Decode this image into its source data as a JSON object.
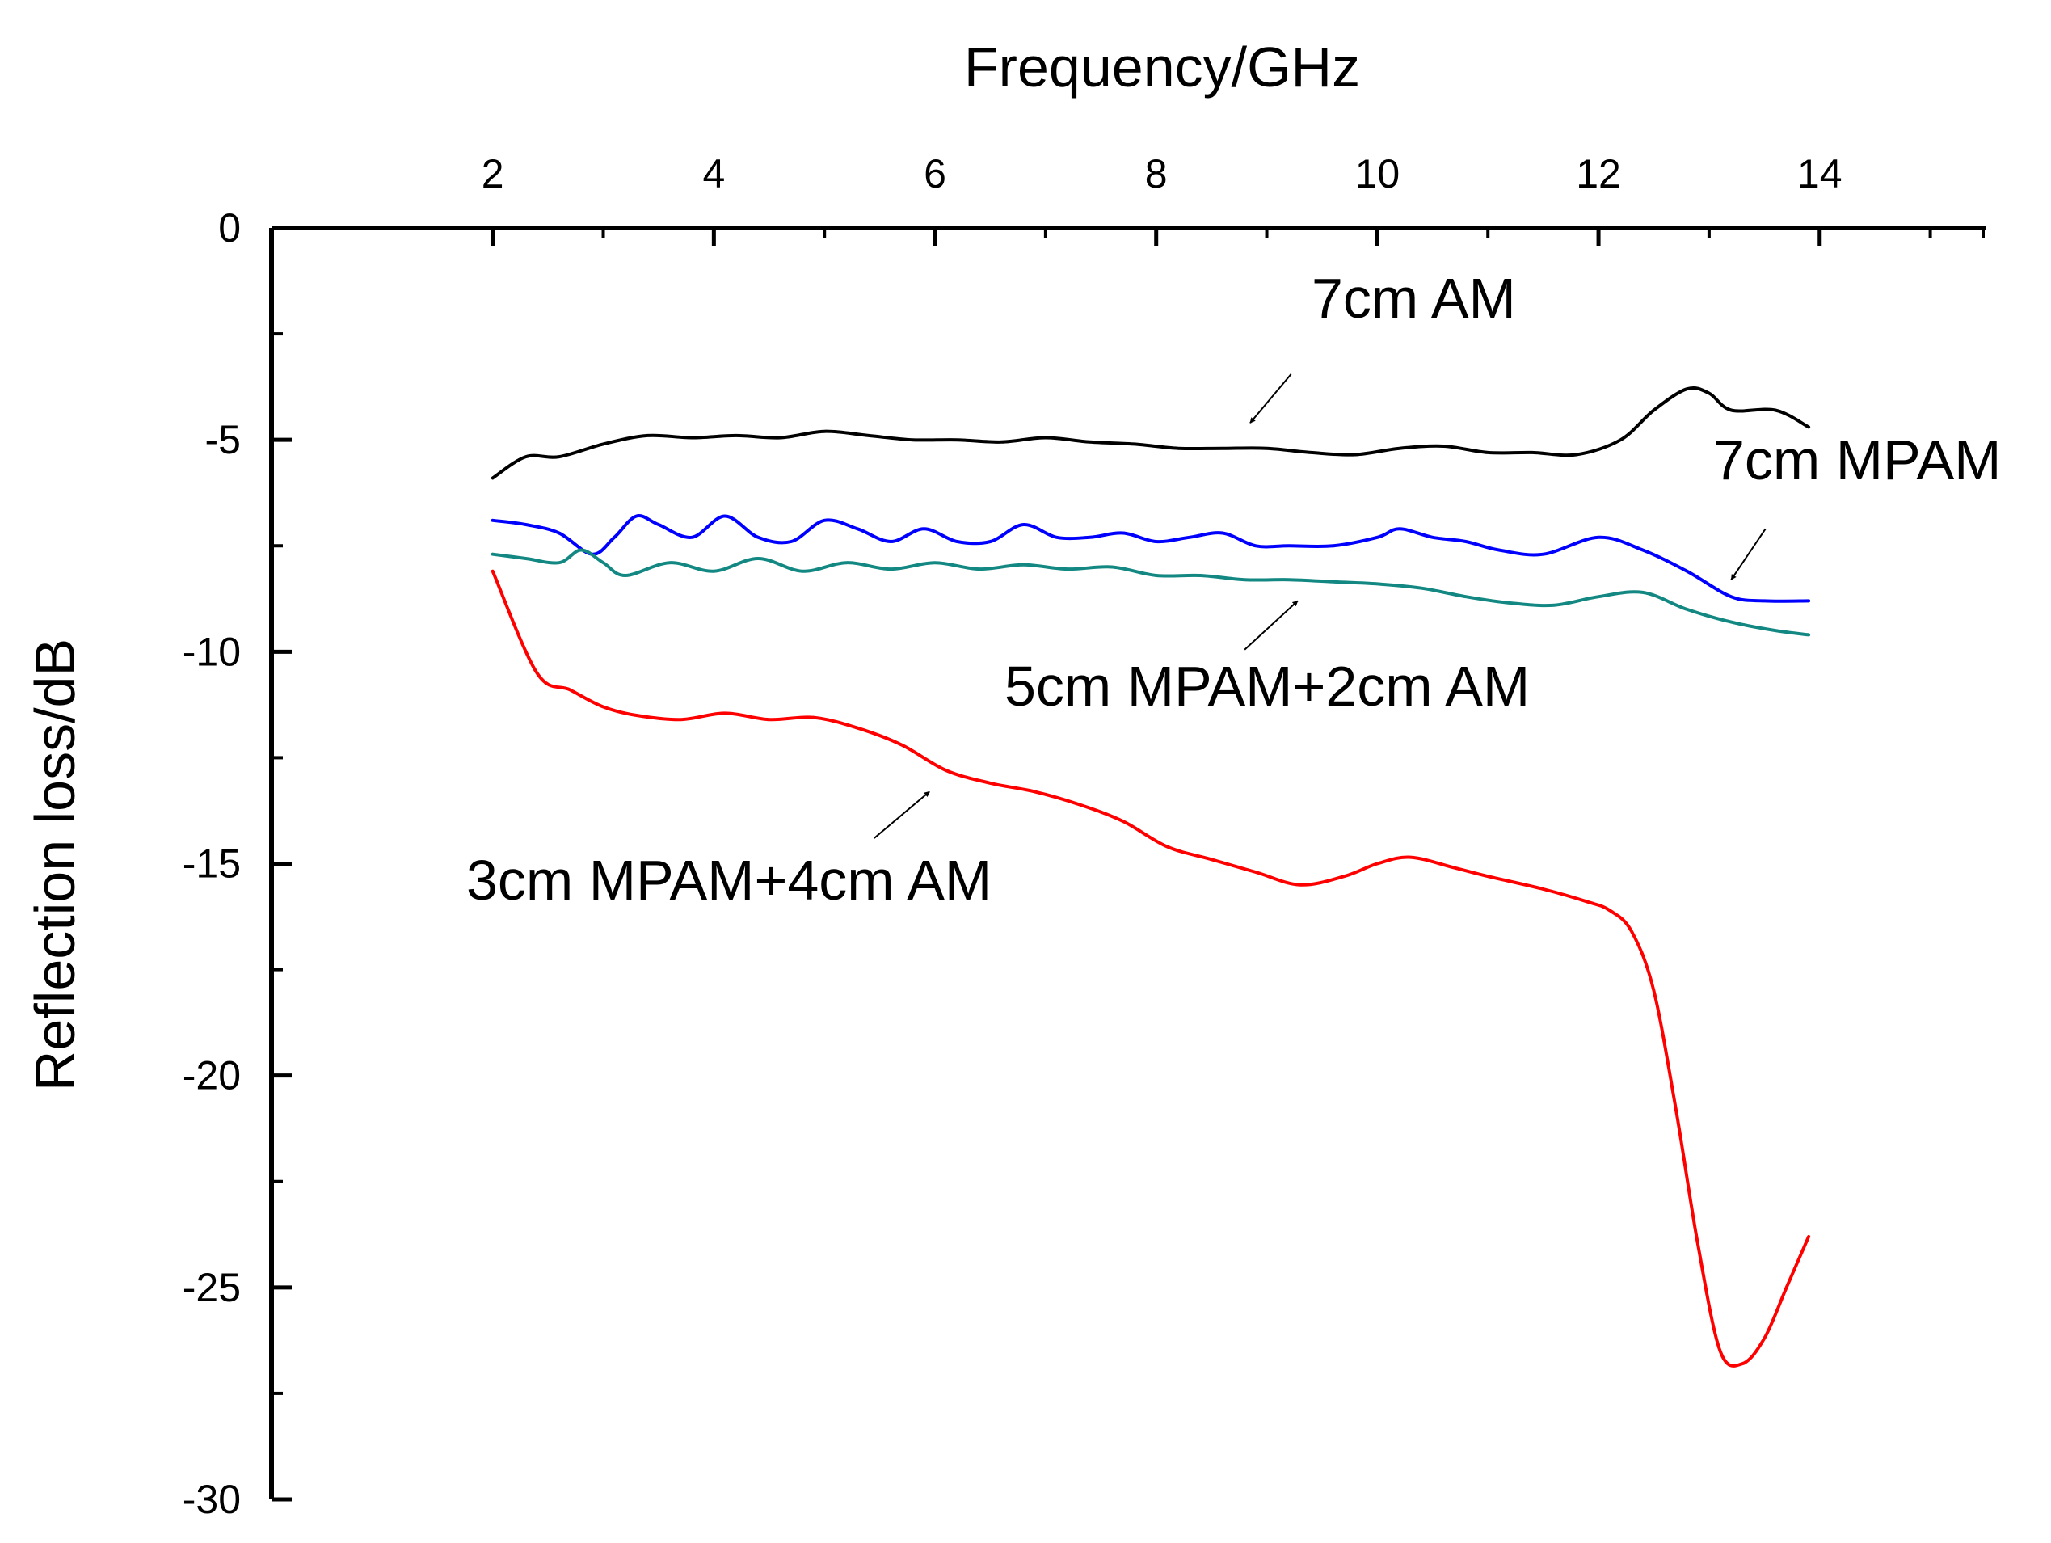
{
  "chart_data": {
    "type": "line",
    "title": "",
    "xlabel": "Frequency/GHz",
    "ylabel": "Reflection loss/dB",
    "xlim": [
      0,
      15.5
    ],
    "ylim": [
      -30,
      0
    ],
    "x_ticks": [
      2,
      4,
      6,
      8,
      10,
      12,
      14
    ],
    "x_tick_labels": [
      "2",
      "4",
      "6",
      "8",
      "10",
      "12",
      "14"
    ],
    "y_ticks": [
      0,
      -5,
      -10,
      -15,
      -20,
      -25,
      -30
    ],
    "y_tick_labels": [
      "0",
      "-5",
      "-10",
      "-15",
      "-20",
      "-25",
      "-30"
    ],
    "x_axis_position": "top",
    "grid": false,
    "legend": "none",
    "series": [
      {
        "name": "7cm AM",
        "color": "#000000",
        "x": [
          2,
          2.3,
          2.6,
          3.0,
          3.4,
          3.8,
          4.2,
          4.6,
          5.0,
          5.4,
          5.8,
          6.2,
          6.6,
          7.0,
          7.4,
          7.8,
          8.2,
          8.6,
          9.0,
          9.4,
          9.8,
          10.2,
          10.6,
          11.0,
          11.4,
          11.8,
          12.2,
          12.5,
          12.8,
          13.0,
          13.2,
          13.6,
          13.9
        ],
        "y": [
          -5.9,
          -5.4,
          -5.4,
          -5.1,
          -4.9,
          -4.95,
          -4.9,
          -4.95,
          -4.8,
          -4.9,
          -5.0,
          -5.0,
          -5.05,
          -4.95,
          -5.05,
          -5.1,
          -5.2,
          -5.2,
          -5.2,
          -5.3,
          -5.35,
          -5.2,
          -5.15,
          -5.3,
          -5.3,
          -5.35,
          -5.0,
          -4.3,
          -3.8,
          -3.9,
          -4.3,
          -4.3,
          -4.7
        ]
      },
      {
        "name": "7cm MPAM",
        "color": "#0000ff",
        "x": [
          2,
          2.3,
          2.6,
          2.9,
          3.1,
          3.3,
          3.5,
          3.8,
          4.1,
          4.4,
          4.7,
          5.0,
          5.3,
          5.6,
          5.9,
          6.2,
          6.5,
          6.8,
          7.1,
          7.4,
          7.7,
          8.0,
          8.3,
          8.6,
          8.9,
          9.2,
          9.6,
          10.0,
          10.2,
          10.5,
          10.8,
          11.1,
          11.5,
          12.0,
          12.4,
          12.8,
          13.2,
          13.5,
          13.9
        ],
        "y": [
          -6.9,
          -7.0,
          -7.2,
          -7.7,
          -7.3,
          -6.8,
          -7.0,
          -7.3,
          -6.8,
          -7.3,
          -7.4,
          -6.9,
          -7.1,
          -7.4,
          -7.1,
          -7.4,
          -7.4,
          -7.0,
          -7.3,
          -7.3,
          -7.2,
          -7.4,
          -7.3,
          -7.2,
          -7.5,
          -7.5,
          -7.5,
          -7.3,
          -7.1,
          -7.3,
          -7.4,
          -7.6,
          -7.7,
          -7.3,
          -7.6,
          -8.1,
          -8.7,
          -8.8,
          -8.8
        ]
      },
      {
        "name": "5cm MPAM+2cm AM",
        "color": "#138883",
        "x": [
          2,
          2.3,
          2.6,
          2.8,
          3.0,
          3.2,
          3.6,
          4.0,
          4.4,
          4.8,
          5.2,
          5.6,
          6.0,
          6.4,
          6.8,
          7.2,
          7.6,
          8.0,
          8.4,
          8.8,
          9.2,
          9.6,
          10.0,
          10.4,
          10.8,
          11.2,
          11.6,
          12.0,
          12.4,
          12.8,
          13.2,
          13.6,
          13.9
        ],
        "y": [
          -7.7,
          -7.8,
          -7.9,
          -7.6,
          -7.9,
          -8.2,
          -7.9,
          -8.1,
          -7.8,
          -8.1,
          -7.9,
          -8.05,
          -7.9,
          -8.05,
          -7.95,
          -8.05,
          -8.0,
          -8.2,
          -8.2,
          -8.3,
          -8.3,
          -8.35,
          -8.4,
          -8.5,
          -8.7,
          -8.85,
          -8.9,
          -8.7,
          -8.6,
          -9.0,
          -9.3,
          -9.5,
          -9.6
        ]
      },
      {
        "name": "3cm MPAM+4cm AM",
        "color": "#ff0000",
        "x": [
          2,
          2.4,
          2.7,
          3.0,
          3.3,
          3.7,
          4.1,
          4.5,
          4.9,
          5.3,
          5.7,
          6.1,
          6.5,
          6.9,
          7.3,
          7.7,
          8.1,
          8.5,
          8.9,
          9.3,
          9.7,
          10.0,
          10.3,
          10.7,
          11.0,
          11.5,
          11.9,
          12.1,
          12.3,
          12.5,
          12.7,
          12.9,
          13.1,
          13.3,
          13.5,
          13.7,
          13.9
        ],
        "y": [
          -8.1,
          -10.5,
          -10.9,
          -11.3,
          -11.5,
          -11.6,
          -11.45,
          -11.6,
          -11.55,
          -11.8,
          -12.2,
          -12.8,
          -13.1,
          -13.3,
          -13.6,
          -14.0,
          -14.6,
          -14.9,
          -15.2,
          -15.5,
          -15.3,
          -15.0,
          -14.85,
          -15.1,
          -15.3,
          -15.6,
          -15.9,
          -16.1,
          -16.6,
          -18.0,
          -20.8,
          -24.0,
          -26.5,
          -26.8,
          -26.2,
          -25.0,
          -23.8
        ]
      }
    ],
    "annotations": [
      {
        "text": "7cm AM",
        "target_x": 8.85,
        "target_y": -4.6,
        "from_x": 9.22,
        "from_y": -3.45
      },
      {
        "text": "7cm MPAM",
        "target_x": 13.2,
        "target_y": -8.3,
        "from_x": 13.51,
        "from_y": -7.1
      },
      {
        "text": "5cm MPAM+2cm AM",
        "target_x": 9.28,
        "target_y": -8.8,
        "from_x": 8.8,
        "from_y": -9.95
      },
      {
        "text": "3cm MPAM+4cm AM",
        "target_x": 5.95,
        "target_y": -13.3,
        "from_x": 5.45,
        "from_y": -14.4
      }
    ]
  }
}
